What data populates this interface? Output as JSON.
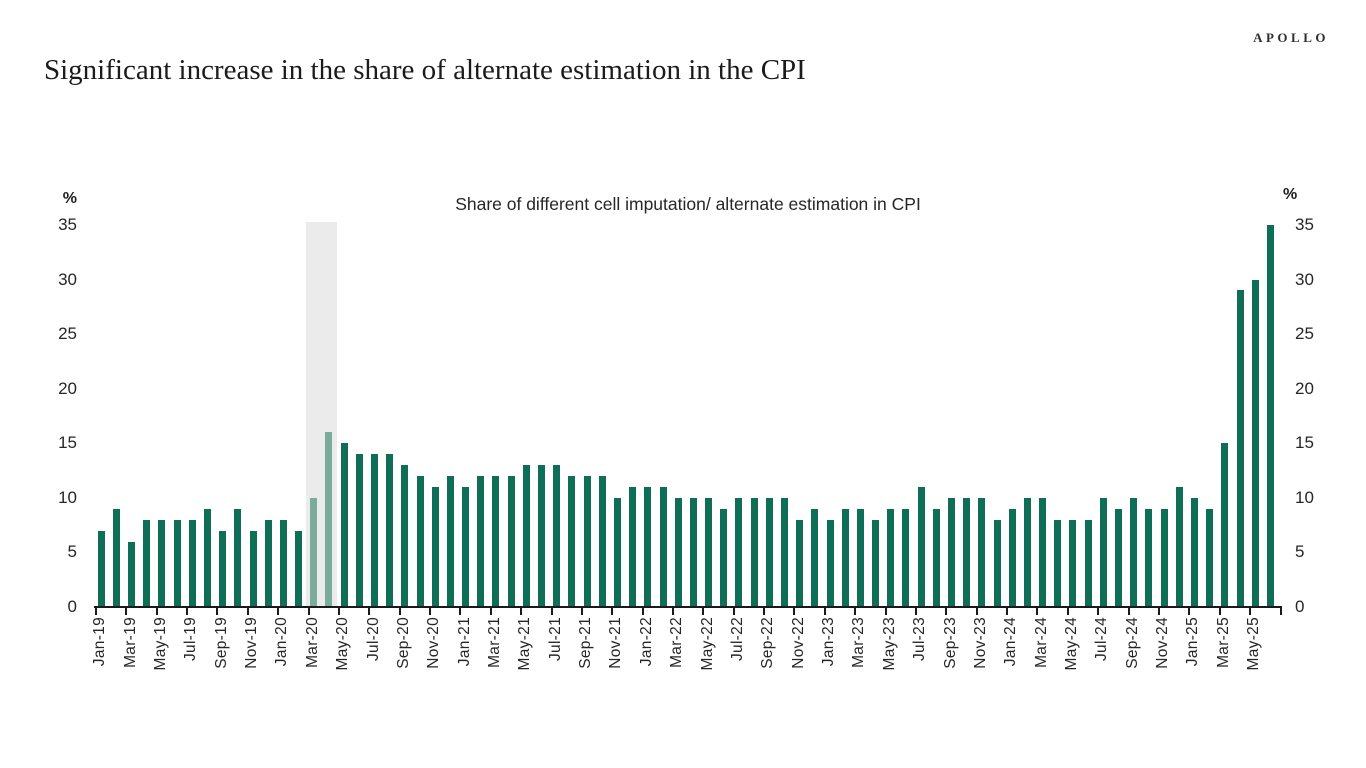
{
  "brand": {
    "logo_text": "APOLLO"
  },
  "header": {
    "title": "Significant increase in the share of alternate estimation in the CPI"
  },
  "chart_data": {
    "type": "bar",
    "title": "Share of different cell imputation/ alternate estimation in CPI",
    "unit_label": "%",
    "ylim": [
      0,
      35
    ],
    "yticks": [
      0,
      5,
      10,
      15,
      20,
      25,
      30,
      35
    ],
    "grid": "off",
    "legend": "none",
    "x": [
      "Jan-19",
      "Feb-19",
      "Mar-19",
      "Apr-19",
      "May-19",
      "Jun-19",
      "Jul-19",
      "Aug-19",
      "Sep-19",
      "Oct-19",
      "Nov-19",
      "Dec-19",
      "Jan-20",
      "Feb-20",
      "Mar-20",
      "Apr-20",
      "May-20",
      "Jun-20",
      "Jul-20",
      "Aug-20",
      "Sep-20",
      "Oct-20",
      "Nov-20",
      "Dec-20",
      "Jan-21",
      "Feb-21",
      "Mar-21",
      "Apr-21",
      "May-21",
      "Jun-21",
      "Jul-21",
      "Aug-21",
      "Sep-21",
      "Oct-21",
      "Nov-21",
      "Dec-21",
      "Jan-22",
      "Feb-22",
      "Mar-22",
      "Apr-22",
      "May-22",
      "Jun-22",
      "Jul-22",
      "Aug-22",
      "Sep-22",
      "Oct-22",
      "Nov-22",
      "Dec-22",
      "Jan-23",
      "Feb-23",
      "Mar-23",
      "Apr-23",
      "May-23",
      "Jun-23",
      "Jul-23",
      "Aug-23",
      "Sep-23",
      "Oct-23",
      "Nov-23",
      "Dec-23",
      "Jan-24",
      "Feb-24",
      "Mar-24",
      "Apr-24",
      "May-24",
      "Jun-24",
      "Jul-24",
      "Aug-24",
      "Sep-24",
      "Oct-24",
      "Nov-24",
      "Dec-24",
      "Jan-25",
      "Feb-25",
      "Mar-25",
      "Apr-25",
      "May-25",
      "Jun-25"
    ],
    "values": [
      7,
      9,
      6,
      8,
      8,
      8,
      8,
      9,
      7,
      9,
      7,
      8,
      8,
      7,
      10,
      16,
      15,
      14,
      14,
      14,
      13,
      12,
      11,
      12,
      11,
      12,
      12,
      12,
      13,
      13,
      13,
      12,
      12,
      12,
      10,
      11,
      11,
      11,
      10,
      10,
      10,
      9,
      10,
      10,
      10,
      10,
      8,
      9,
      8,
      9,
      9,
      8,
      9,
      9,
      11,
      9,
      10,
      10,
      10,
      8,
      9,
      10,
      10,
      8,
      8,
      8,
      10,
      9,
      10,
      9,
      9,
      11,
      10,
      9,
      15,
      29,
      30,
      35
    ],
    "x_tick_labels": [
      "Jan-19",
      "Mar-19",
      "May-19",
      "Jul-19",
      "Sep-19",
      "Nov-19",
      "Jan-20",
      "Mar-20",
      "May-20",
      "Jul-20",
      "Sep-20",
      "Nov-20",
      "Jan-21",
      "Mar-21",
      "May-21",
      "Jul-21",
      "Sep-21",
      "Nov-21",
      "Jan-22",
      "Mar-22",
      "May-22",
      "Jul-22",
      "Sep-22",
      "Nov-22",
      "Jan-23",
      "Mar-23",
      "May-23",
      "Jul-23",
      "Sep-23",
      "Nov-23",
      "Jan-24",
      "Mar-24",
      "May-24",
      "Jul-24",
      "Sep-24",
      "Nov-24",
      "Jan-25",
      "Mar-25",
      "May-25"
    ],
    "highlight_months": [
      "Mar-20",
      "Apr-20"
    ],
    "recession_band": {
      "from": "Mar-20",
      "to": "Apr-20"
    },
    "colors": {
      "bar": "#0e6e56",
      "bar_highlight": "#7aab9b",
      "band": "#ebebeb",
      "text": "#262626",
      "axis": "#1a1a1a"
    }
  }
}
